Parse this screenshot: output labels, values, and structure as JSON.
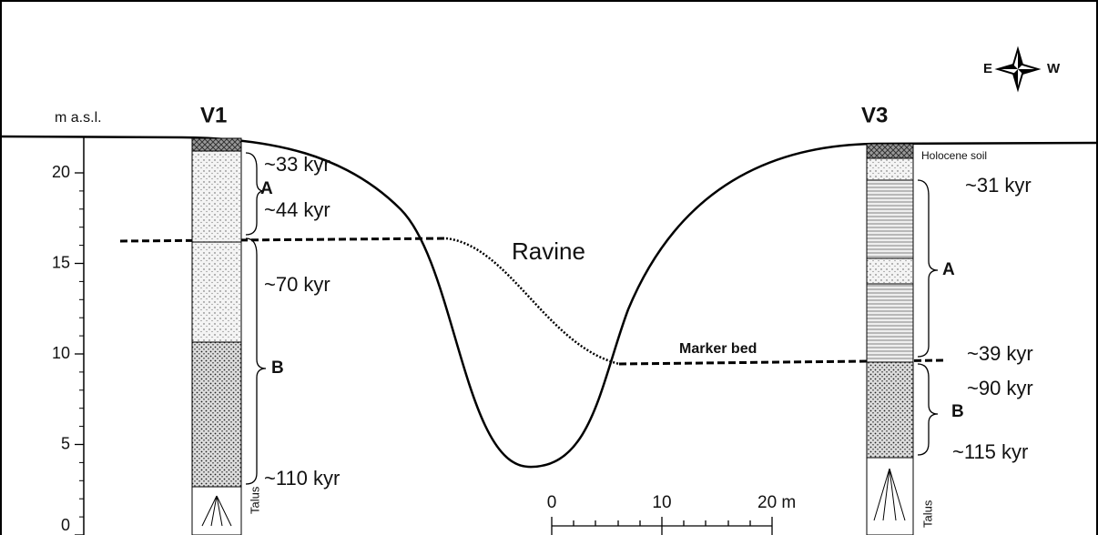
{
  "axis": {
    "label": "m a.s.l.",
    "ticks": [
      0,
      5,
      10,
      15,
      20
    ]
  },
  "compass": {
    "east": "E",
    "west": "W"
  },
  "ravine": "Ravine",
  "marker_bed": "Marker bed",
  "v1": {
    "title": "V1",
    "ages": [
      "~33 kyr",
      "~44 kyr",
      "~70 kyr",
      "~110 kyr"
    ],
    "units": [
      "A",
      "B"
    ],
    "talus": "Talus"
  },
  "v3": {
    "title": "V3",
    "soil": "Holocene soil",
    "ages": [
      "~31 kyr",
      "~39 kyr",
      "~90 kyr",
      "~115 kyr"
    ],
    "units": [
      "A",
      "B"
    ],
    "talus": "Talus"
  },
  "scale_bar": {
    "labels": [
      "0",
      "10",
      "20 m"
    ]
  }
}
